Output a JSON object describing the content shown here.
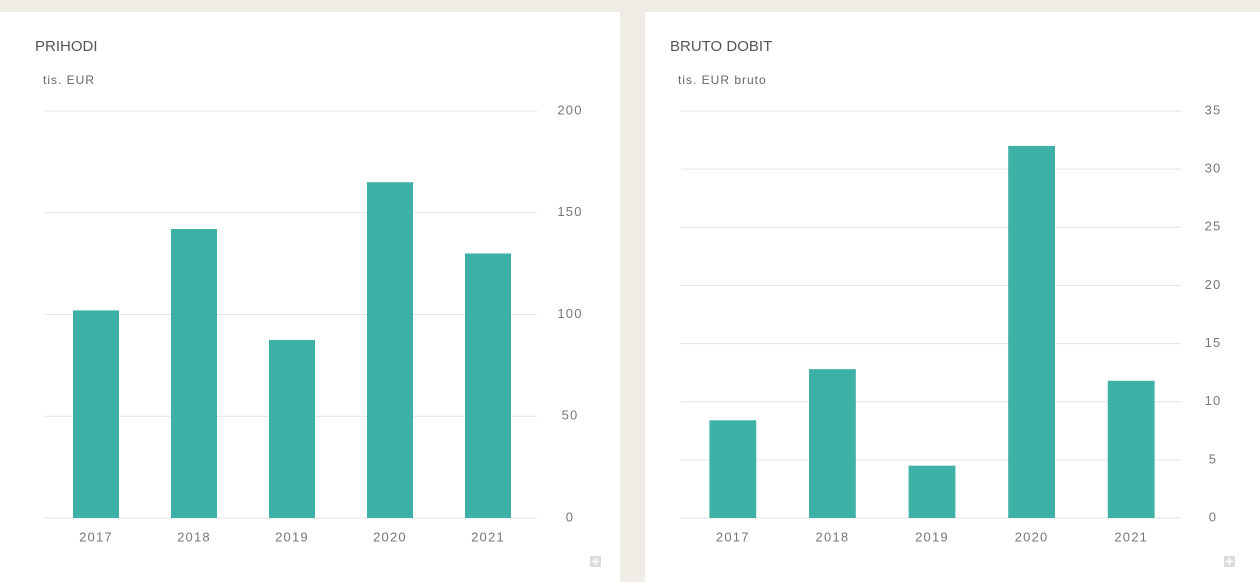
{
  "chart_data": [
    {
      "type": "bar",
      "title": "PRIHODI",
      "subtitle": "tis. EUR",
      "categories": [
        "2017",
        "2018",
        "2019",
        "2020",
        "2021"
      ],
      "values": [
        102,
        142,
        87.5,
        165,
        130
      ],
      "color": "#3eb1a6",
      "ylim": [
        0,
        200
      ],
      "yticks": [
        0,
        50,
        100,
        150,
        200
      ],
      "grid": true
    },
    {
      "type": "bar",
      "title": "BRUTO DOBIT",
      "subtitle": "tis. EUR bruto",
      "categories": [
        "2017",
        "2018",
        "2019",
        "2020",
        "2021"
      ],
      "values": [
        8.4,
        12.8,
        4.5,
        32,
        11.8
      ],
      "color": "#3eb1a6",
      "ylim": [
        0,
        35
      ],
      "yticks": [
        0,
        5,
        10,
        15,
        20,
        25,
        30,
        35
      ],
      "grid": true
    }
  ]
}
